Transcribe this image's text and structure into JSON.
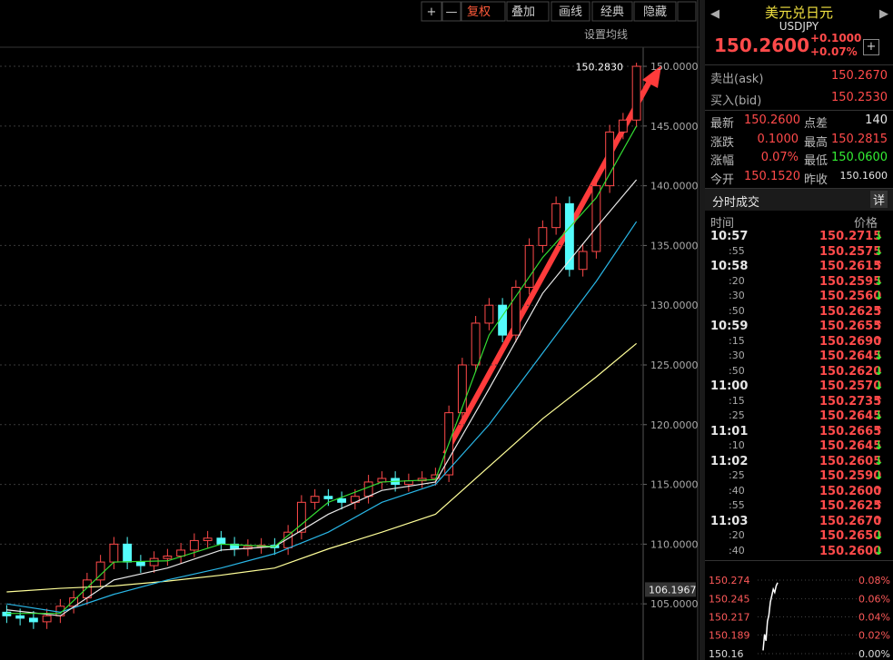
{
  "toolbar": {
    "buttons": [
      "+",
      "—",
      "复权",
      "叠加",
      "画线",
      "经典",
      "隐藏"
    ]
  },
  "main_chart": {
    "ma_setting": "设置均线",
    "ylim": [
      100.3,
      155.55
    ],
    "yticks": [
      {
        "value": 150,
        "label": "150.0000"
      },
      {
        "value": 145,
        "label": "145.0000"
      },
      {
        "value": 140,
        "label": "140.0000"
      },
      {
        "value": 135,
        "label": "135.0000"
      },
      {
        "value": 130,
        "label": "130.0000"
      },
      {
        "value": 125,
        "label": "125.0000"
      },
      {
        "value": 120,
        "label": "120.0000"
      },
      {
        "value": 115,
        "label": "115.0000"
      },
      {
        "value": 110,
        "label": "110.0000"
      },
      {
        "value": 105,
        "label": "105.0000"
      }
    ],
    "up_color": "#ff4a4a",
    "down_color": "#54fcfc",
    "candles": {
      "open": [
        104.3,
        104.0,
        103.8,
        103.5,
        104.0,
        104.8,
        105.5,
        107.0,
        108.5,
        110.0,
        108.5,
        108.2,
        108.8,
        109.0,
        109.5,
        110.3,
        110.5,
        110.0,
        109.6,
        109.8,
        109.9,
        109.7,
        111.0,
        113.5,
        114.0,
        113.8,
        113.5,
        114.0,
        115.2,
        115.5,
        115.0,
        115.3,
        115.5,
        115.8,
        121.0,
        125.0,
        128.5,
        130.0,
        127.5,
        131.5,
        135.0,
        136.5,
        138.5,
        133.0,
        134.5,
        140.0,
        144.5,
        145.5
      ],
      "high": [
        104.9,
        104.6,
        104.4,
        104.6,
        105.4,
        106.1,
        107.6,
        109.1,
        110.6,
        110.6,
        109.1,
        109.4,
        109.6,
        110.1,
        110.9,
        111.1,
        111.1,
        110.6,
        110.4,
        110.5,
        110.5,
        111.6,
        114.1,
        114.6,
        114.6,
        114.4,
        114.6,
        115.8,
        116.1,
        116.1,
        115.9,
        116.1,
        116.4,
        121.6,
        125.6,
        129.1,
        130.6,
        130.6,
        132.1,
        135.6,
        137.1,
        139.1,
        139.1,
        135.1,
        140.6,
        145.1,
        146.1,
        150.3
      ],
      "low": [
        103.4,
        103.2,
        102.9,
        102.9,
        103.4,
        104.2,
        104.9,
        106.4,
        107.9,
        107.9,
        107.6,
        107.6,
        108.2,
        108.4,
        108.9,
        109.7,
        109.4,
        109.0,
        109.0,
        109.2,
        109.1,
        109.1,
        110.4,
        112.9,
        113.2,
        112.9,
        112.9,
        113.4,
        114.6,
        114.4,
        114.4,
        114.7,
        114.9,
        115.2,
        120.4,
        124.4,
        127.9,
        126.9,
        126.9,
        130.9,
        134.4,
        135.9,
        132.4,
        132.4,
        133.9,
        139.4,
        143.9,
        144.9
      ],
      "close": [
        104.0,
        103.8,
        103.5,
        104.0,
        104.8,
        105.5,
        107.0,
        108.5,
        110.0,
        108.5,
        108.2,
        108.8,
        109.0,
        109.5,
        110.3,
        110.5,
        110.0,
        109.6,
        109.8,
        109.9,
        109.7,
        111.0,
        113.5,
        114.0,
        113.8,
        113.5,
        114.0,
        115.2,
        115.5,
        115.0,
        115.3,
        115.5,
        115.8,
        121.0,
        125.0,
        128.5,
        130.0,
        127.5,
        131.5,
        135.0,
        136.5,
        138.5,
        133.0,
        134.5,
        140.0,
        144.5,
        145.5,
        150.0
      ]
    },
    "ma_x": [
      0,
      4,
      8,
      12,
      16,
      20,
      24,
      28,
      32,
      36,
      40,
      44,
      47
    ],
    "moving_averages": [
      {
        "color": "#ffff99",
        "values": [
          106.0,
          106.3,
          106.5,
          106.9,
          107.4,
          108.0,
          109.6,
          111.0,
          112.5,
          116.5,
          120.5,
          124.0,
          126.8
        ]
      },
      {
        "color": "#29b6e6",
        "values": [
          105.0,
          104.3,
          105.8,
          107.0,
          108.0,
          109.2,
          111.0,
          113.5,
          115.0,
          120.0,
          126.0,
          132.0,
          137.0
        ]
      },
      {
        "color": "#e8e8e8",
        "values": [
          104.5,
          104.0,
          107.0,
          108.0,
          109.5,
          109.8,
          112.5,
          114.5,
          115.2,
          123.0,
          131.0,
          136.5,
          140.5
        ]
      },
      {
        "color": "#33dd33",
        "values": [
          104.2,
          104.2,
          108.5,
          108.6,
          110.0,
          109.8,
          113.5,
          115.2,
          115.4,
          127.5,
          134.0,
          139.0,
          145.0
        ]
      }
    ],
    "last_marker": {
      "value": 150.283,
      "label": "150.2830"
    },
    "axis_marker": {
      "value": 106.1967,
      "label": "106.1967"
    }
  },
  "quote": {
    "name": "美元兑日元",
    "symbol": "USDJPY",
    "price": "150.2600",
    "change": "+0.1000",
    "change_pct": "+0.07%"
  },
  "bid_ask": [
    {
      "label": "卖出(ask)",
      "value": "150.2670"
    },
    {
      "label": "买入(bid)",
      "value": "150.2530"
    }
  ],
  "stats": [
    [
      "最新",
      "150.2600",
      "点差",
      "140"
    ],
    [
      "涨跌",
      "0.1000",
      "最高",
      "150.2815"
    ],
    [
      "涨幅",
      "0.07%",
      "最低",
      "150.0600"
    ],
    [
      "今开",
      "150.1520",
      "昨收",
      "150.1600"
    ]
  ],
  "trades": {
    "title": "分时成交",
    "detail": "详",
    "headers": [
      "时间",
      "价格"
    ],
    "rows": [
      {
        "time": "10:57",
        "price": "150.2715",
        "dir": "↓"
      },
      {
        "time": ":55",
        "price": "150.2575",
        "dir": "↓"
      },
      {
        "time": "10:58",
        "price": "150.2615",
        "dir": "↑"
      },
      {
        "time": ":20",
        "price": "150.2595",
        "dir": "↓"
      },
      {
        "time": ":30",
        "price": "150.2560",
        "dir": "↓"
      },
      {
        "time": ":50",
        "price": "150.2625",
        "dir": "↑"
      },
      {
        "time": "10:59",
        "price": "150.2655",
        "dir": "↑"
      },
      {
        "time": ":15",
        "price": "150.2690",
        "dir": "↑"
      },
      {
        "time": ":30",
        "price": "150.2645",
        "dir": "↓"
      },
      {
        "time": ":50",
        "price": "150.2620",
        "dir": "↓"
      },
      {
        "time": "11:00",
        "price": "150.2570",
        "dir": "↓"
      },
      {
        "time": ":15",
        "price": "150.2735",
        "dir": "↑"
      },
      {
        "time": ":25",
        "price": "150.2645",
        "dir": "↓"
      },
      {
        "time": "11:01",
        "price": "150.2665",
        "dir": "↑"
      },
      {
        "time": ":10",
        "price": "150.2645",
        "dir": "↓"
      },
      {
        "time": "11:02",
        "price": "150.2605",
        "dir": "↓"
      },
      {
        "time": ":25",
        "price": "150.2590",
        "dir": "↓"
      },
      {
        "time": ":40",
        "price": "150.2600",
        "dir": "↑"
      },
      {
        "time": ":55",
        "price": "150.2625",
        "dir": "↑"
      },
      {
        "time": "11:03",
        "price": "150.2670",
        "dir": "↑"
      },
      {
        "time": ":20",
        "price": "150.2650",
        "dir": "↓"
      },
      {
        "time": ":40",
        "price": "150.2600",
        "dir": "↓"
      }
    ]
  },
  "mini_chart": {
    "ylim": [
      150.16,
      150.274
    ],
    "yticks": [
      150.274,
      150.245,
      150.217,
      150.189,
      150.16
    ],
    "pct_ticks": [
      "0.08%",
      "0.06%",
      "0.04%",
      "0.02%",
      "0.00%"
    ],
    "values": [
      150.165,
      150.19,
      150.18,
      150.21,
      150.22,
      150.24,
      150.25,
      150.26,
      150.255,
      150.265,
      150.27
    ]
  }
}
